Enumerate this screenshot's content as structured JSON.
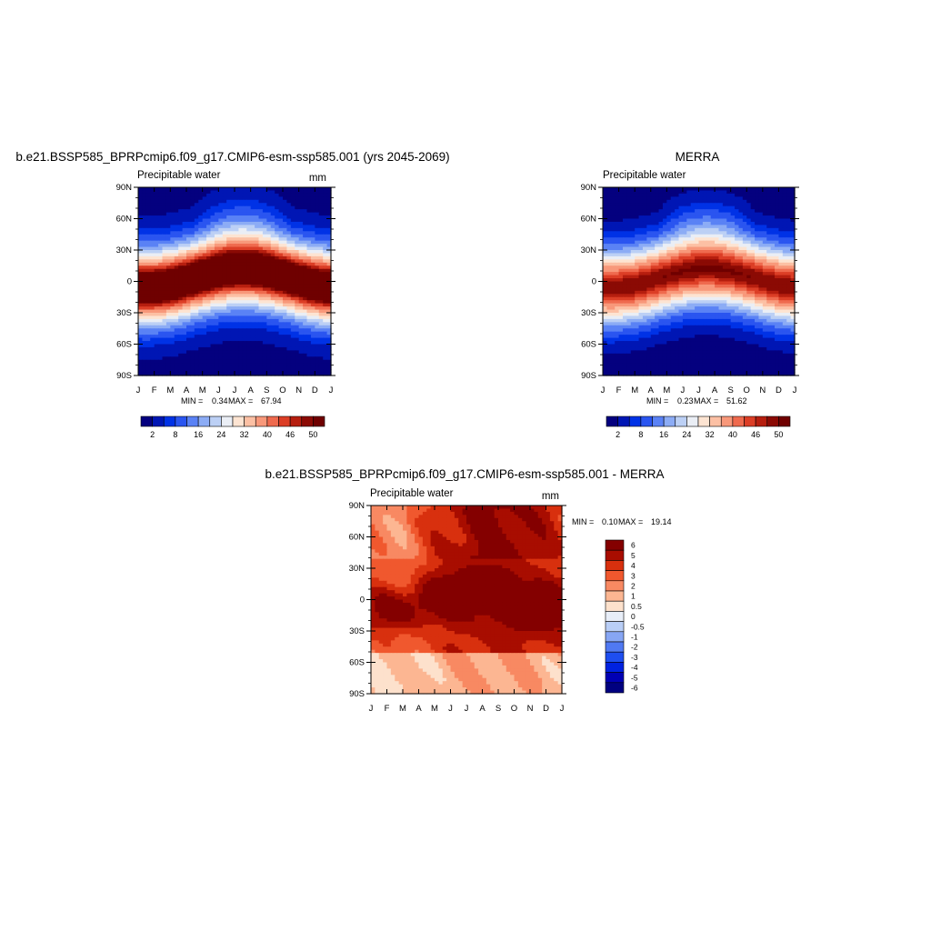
{
  "chart_data": [
    {
      "type": "heatmap",
      "title": "b.e21.BSSP585_BPRPcmip6.f09_g17.CMIP6-esm-ssp585.001 (yrs 2045-2069)",
      "left_label": "Precipitable water",
      "units": "mm",
      "x_ticks": [
        "J",
        "F",
        "M",
        "A",
        "M",
        "J",
        "J",
        "A",
        "S",
        "O",
        "N",
        "D",
        "J"
      ],
      "y_ticks": [
        "90N",
        "60N",
        "30N",
        "0",
        "30S",
        "60S",
        "90S"
      ],
      "stats": {
        "min_label": "MIN =",
        "min": "0.34",
        "max_label": "MAX =",
        "max": "67.94"
      },
      "colorbar": {
        "orientation": "horizontal",
        "labels": [
          "2",
          "8",
          "16",
          "24",
          "32",
          "40",
          "46",
          "50"
        ]
      },
      "field": {
        "kind": "model",
        "equator_peak": 60,
        "polar_min": 1
      }
    },
    {
      "type": "heatmap",
      "title": "MERRA",
      "left_label": "Precipitable water",
      "units": "",
      "x_ticks": [
        "J",
        "F",
        "M",
        "A",
        "M",
        "J",
        "J",
        "A",
        "S",
        "O",
        "N",
        "D",
        "J"
      ],
      "y_ticks": [
        "90N",
        "60N",
        "30N",
        "0",
        "30S",
        "60S",
        "90S"
      ],
      "stats": {
        "min_label": "MIN =",
        "min": "0.23",
        "max_label": "MAX =",
        "max": "51.62"
      },
      "colorbar": {
        "orientation": "horizontal",
        "labels": [
          "2",
          "8",
          "16",
          "24",
          "32",
          "40",
          "46",
          "50"
        ]
      },
      "field": {
        "kind": "obs",
        "equator_peak": 50,
        "polar_min": 0.5
      }
    },
    {
      "type": "heatmap",
      "title": "b.e21.BSSP585_BPRPcmip6.f09_g17.CMIP6-esm-ssp585.001 - MERRA",
      "left_label": "Precipitable water",
      "units": "mm",
      "x_ticks": [
        "J",
        "F",
        "M",
        "A",
        "M",
        "J",
        "J",
        "A",
        "S",
        "O",
        "N",
        "D",
        "J"
      ],
      "y_ticks": [
        "90N",
        "60N",
        "30N",
        "0",
        "30S",
        "60S",
        "90S"
      ],
      "stats": {
        "min_label": "MIN =",
        "min": "0.10",
        "max_label": "MAX =",
        "max": "19.14"
      },
      "colorbar": {
        "orientation": "vertical",
        "labels": [
          "6",
          "5",
          "4",
          "3",
          "2",
          "1",
          "0.5",
          "0",
          "-0.5",
          "-1",
          "-2",
          "-3",
          "-4",
          "-5",
          "-6"
        ]
      },
      "field": {
        "kind": "diff"
      }
    }
  ],
  "palettes": {
    "absolute": [
      "#04007f",
      "#0016b4",
      "#0032e6",
      "#2a55f0",
      "#5a82f5",
      "#8cacf5",
      "#bcd0f5",
      "#eaeef5",
      "#fde4d2",
      "#fcc0a4",
      "#f8987a",
      "#ef6a4e",
      "#dc3e26",
      "#b61e0f",
      "#8b0a04",
      "#6f0000"
    ],
    "absolute_levels": [
      2,
      5,
      8,
      12,
      16,
      20,
      24,
      28,
      32,
      36,
      40,
      43,
      46,
      48,
      50
    ],
    "difference": [
      "#000080",
      "#0000b4",
      "#0022e0",
      "#1e4ef0",
      "#5079f2",
      "#87a6f4",
      "#b9cef6",
      "#e8eef8",
      "#fde1cc",
      "#fcb692",
      "#f88962",
      "#f0582e",
      "#d8300e",
      "#a80d00",
      "#840000"
    ],
    "difference_levels": [
      -6,
      -5,
      -4,
      -3,
      -2,
      -1,
      -0.5,
      0,
      0.5,
      1,
      2,
      3,
      4,
      5,
      6
    ]
  }
}
